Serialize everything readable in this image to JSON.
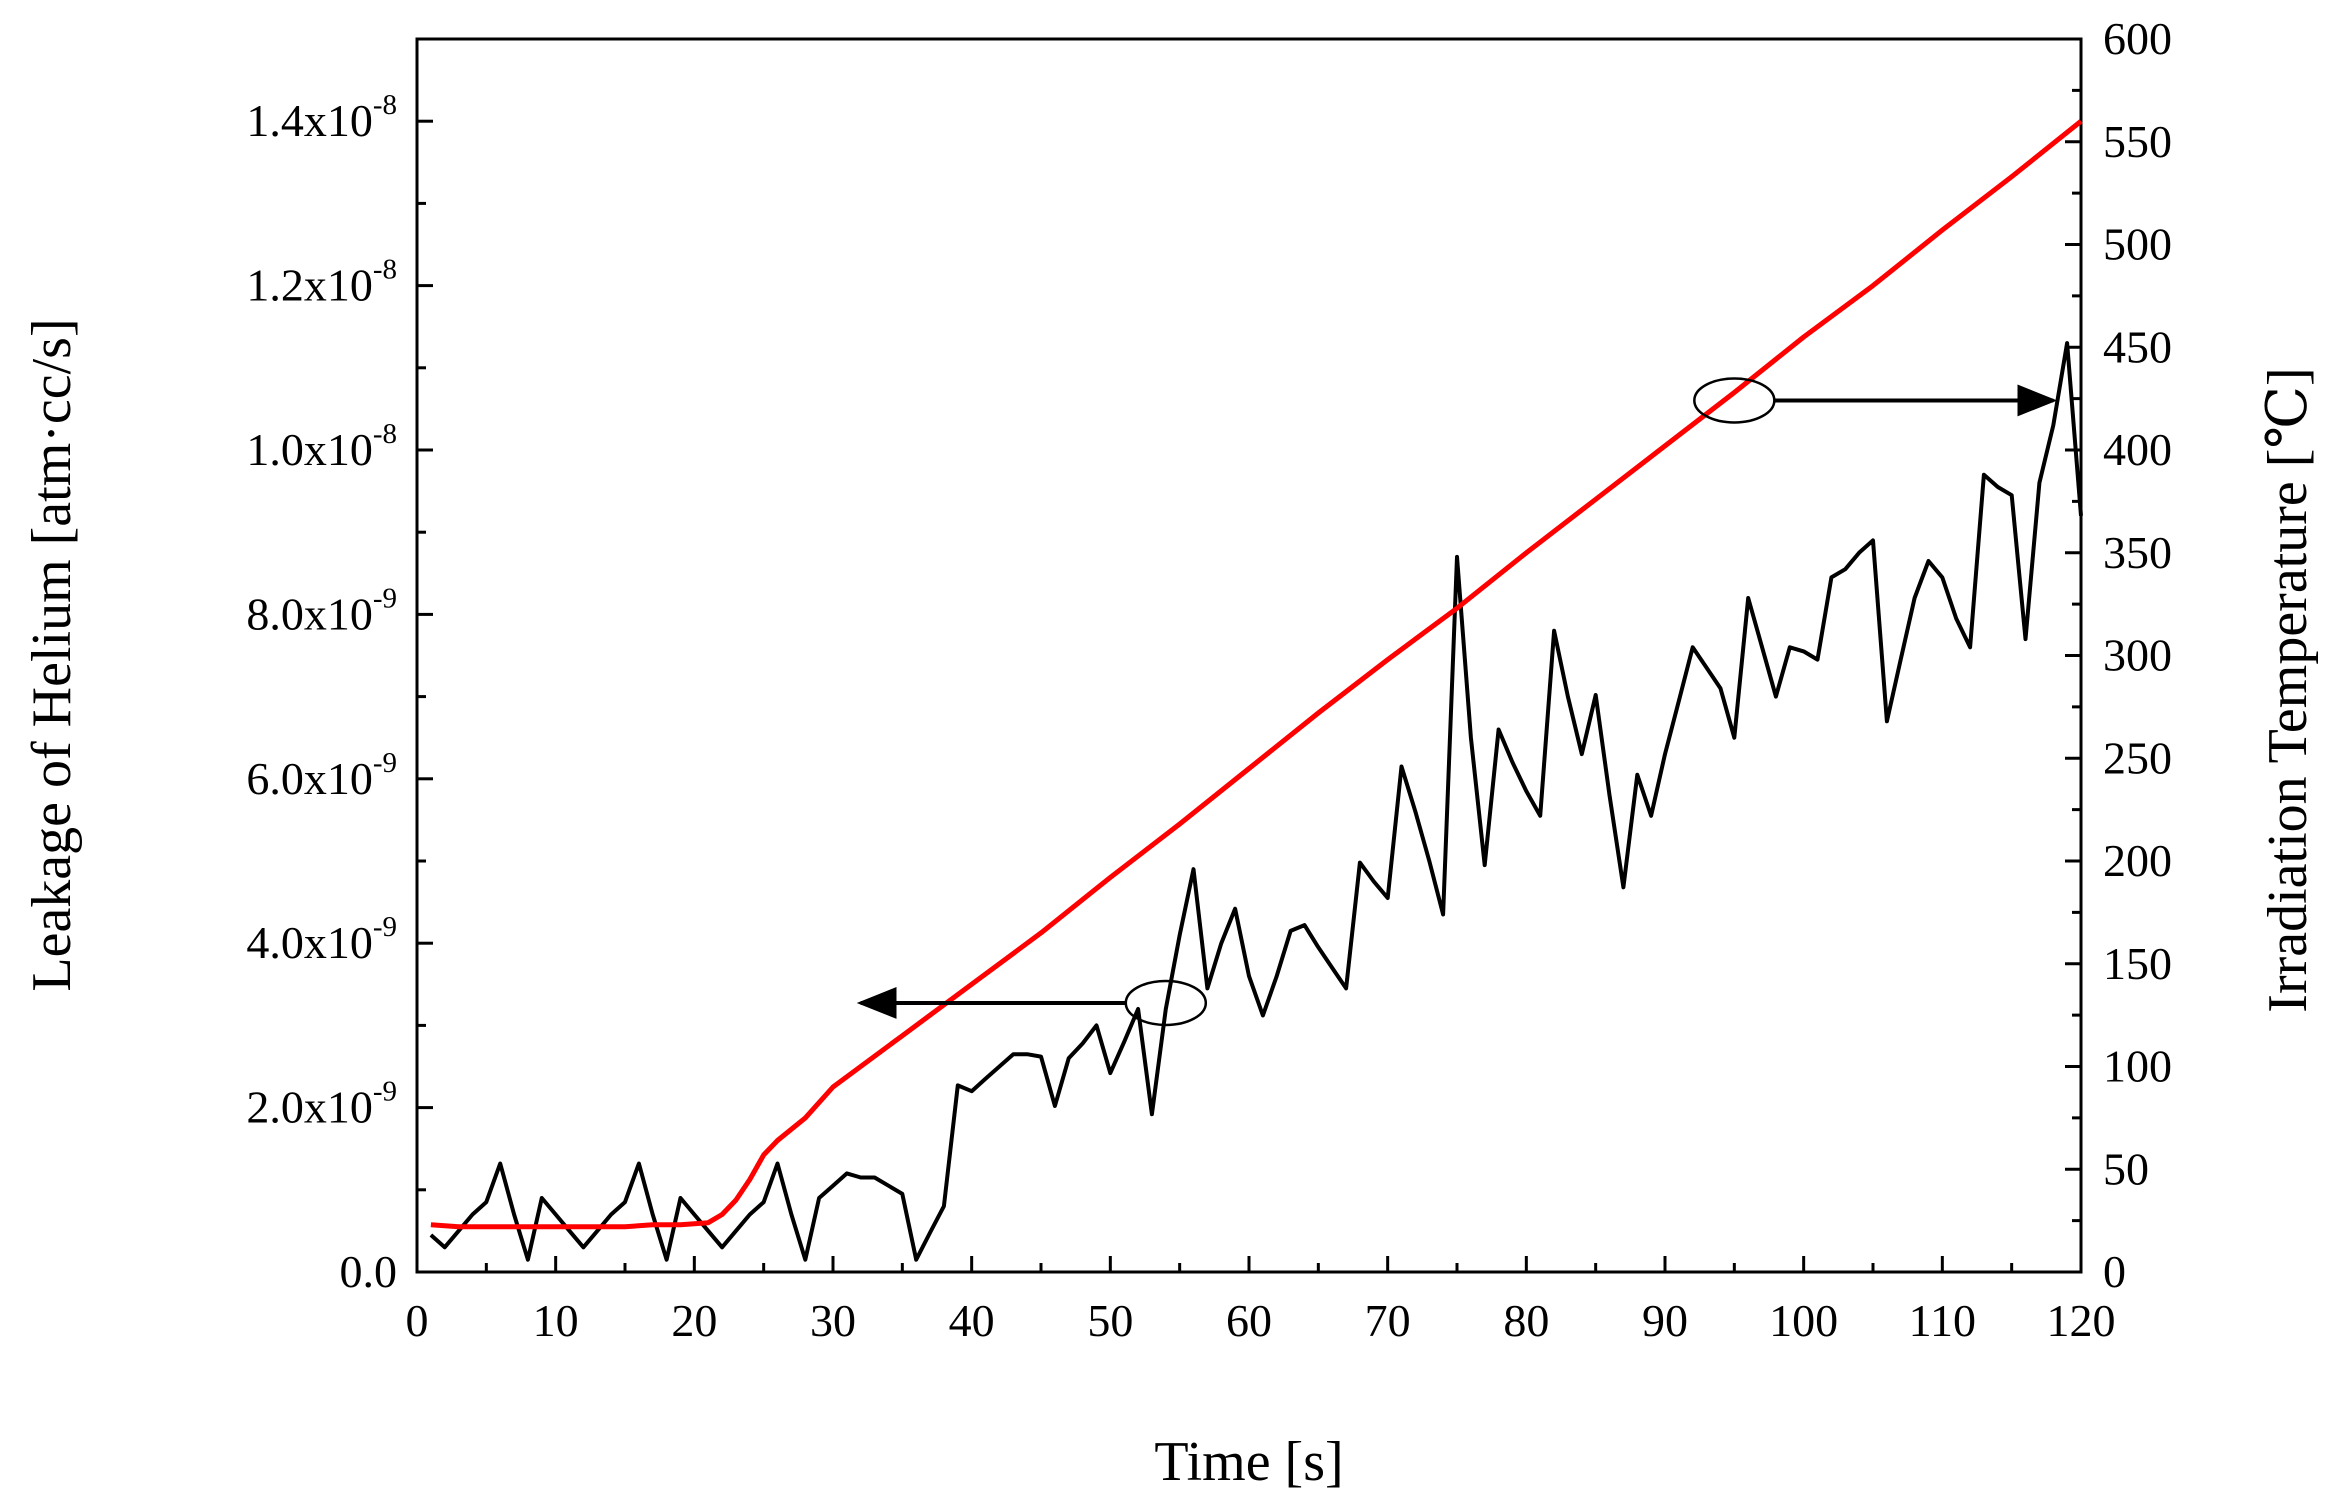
{
  "chart_data": {
    "type": "line",
    "title": "",
    "xlabel": "Time [s]",
    "ylabel_left": "Leakage of Helium [atm·cc/s]",
    "ylabel_right": "Irradiation Temperature [℃]",
    "xlim": [
      0,
      120
    ],
    "ylim_left": [
      0,
      1.5e-08
    ],
    "ylim_right": [
      0,
      600
    ],
    "x_ticks": [
      "0",
      "10",
      "20",
      "30",
      "40",
      "50",
      "60",
      "70",
      "80",
      "90",
      "100",
      "110",
      "120"
    ],
    "y_left_ticks": [
      {
        "mantissa": "0.0",
        "exp": ""
      },
      {
        "mantissa": "2.0x10",
        "exp": "-9"
      },
      {
        "mantissa": "4.0x10",
        "exp": "-9"
      },
      {
        "mantissa": "6.0x10",
        "exp": "-9"
      },
      {
        "mantissa": "8.0x10",
        "exp": "-9"
      },
      {
        "mantissa": "1.0x10",
        "exp": "-8"
      },
      {
        "mantissa": "1.2x10",
        "exp": "-8"
      },
      {
        "mantissa": "1.4x10",
        "exp": "-8"
      }
    ],
    "y_right_ticks": [
      "0",
      "50",
      "100",
      "150",
      "200",
      "250",
      "300",
      "350",
      "400",
      "450",
      "500",
      "550",
      "600"
    ],
    "series": [
      {
        "name": "Leakage of Helium",
        "axis": "left",
        "color": "#000000",
        "x": [
          1,
          2,
          3,
          4,
          5,
          6,
          7,
          8,
          9,
          10,
          11,
          12,
          13,
          14,
          15,
          16,
          17,
          18,
          19,
          20,
          21,
          22,
          23,
          24,
          25,
          26,
          27,
          28,
          29,
          30,
          31,
          32,
          33,
          34,
          35,
          36,
          37,
          38,
          39,
          40,
          41,
          42,
          43,
          44,
          45,
          46,
          47,
          48,
          49,
          50,
          51,
          52,
          53,
          54,
          55,
          56,
          57,
          58,
          59,
          60,
          61,
          62,
          63,
          64,
          65,
          66,
          67,
          68,
          69,
          70,
          71,
          72,
          73,
          74,
          75,
          76,
          77,
          78,
          79,
          80,
          81,
          82,
          83,
          84,
          85,
          86,
          87,
          88,
          89,
          90,
          91,
          92,
          93,
          94,
          95,
          96,
          97,
          98,
          99,
          100,
          101,
          102,
          103,
          104,
          105,
          106,
          107,
          108,
          109,
          110,
          111,
          112,
          113,
          114,
          115,
          116,
          117,
          118,
          119,
          120
        ],
        "y": [
          4.5e-10,
          3e-10,
          5e-10,
          7e-10,
          8.5e-10,
          1.32e-09,
          7e-10,
          1.5e-10,
          9e-10,
          7e-10,
          5e-10,
          3e-10,
          5e-10,
          7e-10,
          8.5e-10,
          1.32e-09,
          7e-10,
          1.5e-10,
          9e-10,
          7e-10,
          5e-10,
          3e-10,
          5e-10,
          7e-10,
          8.5e-10,
          1.32e-09,
          7e-10,
          1.5e-10,
          9e-10,
          1.05e-09,
          1.2e-09,
          1.15e-09,
          1.15e-09,
          1.05e-09,
          9.5e-10,
          1.5e-10,
          4.8e-10,
          8e-10,
          2.27e-09,
          2.2e-09,
          2.35e-09,
          2.5e-09,
          2.65e-09,
          2.65e-09,
          2.62e-09,
          2.02e-09,
          2.6e-09,
          2.78e-09,
          3e-09,
          2.42e-09,
          2.8e-09,
          3.2e-09,
          1.92e-09,
          3.2e-09,
          4.1e-09,
          4.9e-09,
          3.45e-09,
          4e-09,
          4.42e-09,
          3.6e-09,
          3.12e-09,
          3.6e-09,
          4.15e-09,
          4.22e-09,
          3.95e-09,
          3.7e-09,
          3.45e-09,
          4.98e-09,
          4.75e-09,
          4.55e-09,
          6.15e-09,
          5.6e-09,
          5e-09,
          4.35e-09,
          8.7e-09,
          6.5e-09,
          4.95e-09,
          6.6e-09,
          6.2e-09,
          5.85e-09,
          5.55e-09,
          7.8e-09,
          7e-09,
          6.3e-09,
          7.02e-09,
          5.8e-09,
          4.68e-09,
          6.05e-09,
          5.55e-09,
          6.3e-09,
          6.95e-09,
          7.6e-09,
          7.35e-09,
          7.1e-09,
          6.5e-09,
          8.2e-09,
          7.6e-09,
          7e-09,
          7.6e-09,
          7.55e-09,
          7.45e-09,
          8.45e-09,
          8.55e-09,
          8.75e-09,
          8.9e-09,
          6.7e-09,
          7.45e-09,
          8.2e-09,
          8.65e-09,
          8.45e-09,
          7.95e-09,
          7.6e-09,
          9.7e-09,
          9.55e-09,
          9.45e-09,
          7.7e-09,
          9.6e-09,
          1.03e-08,
          1.13e-08,
          9.2e-09
        ]
      },
      {
        "name": "Irradiation Temperature",
        "axis": "right",
        "color": "#ff0000",
        "x": [
          1,
          3,
          5,
          7,
          9,
          11,
          13,
          15,
          17,
          19,
          21,
          22,
          23,
          24,
          25,
          26,
          28,
          30,
          35,
          40,
          45,
          50,
          55,
          60,
          65,
          70,
          75,
          80,
          85,
          90,
          95,
          100,
          105,
          110,
          115,
          120
        ],
        "y": [
          23,
          22,
          22,
          22,
          22,
          22,
          22,
          22,
          23,
          23,
          24,
          28,
          35,
          45,
          57,
          64,
          75,
          90,
          115,
          140,
          165,
          192,
          218,
          245,
          272,
          298,
          323,
          350,
          376,
          402,
          428,
          455,
          480,
          507,
          533,
          560
        ]
      }
    ],
    "annotations": [
      {
        "type": "ellipse_arrow",
        "direction": "left",
        "target": "Leakage of Helium",
        "at_x": 54,
        "to_x": 32
      },
      {
        "type": "ellipse_arrow",
        "direction": "right",
        "target": "Irradiation Temperature",
        "at_x": 95,
        "to_x": 118
      }
    ]
  }
}
